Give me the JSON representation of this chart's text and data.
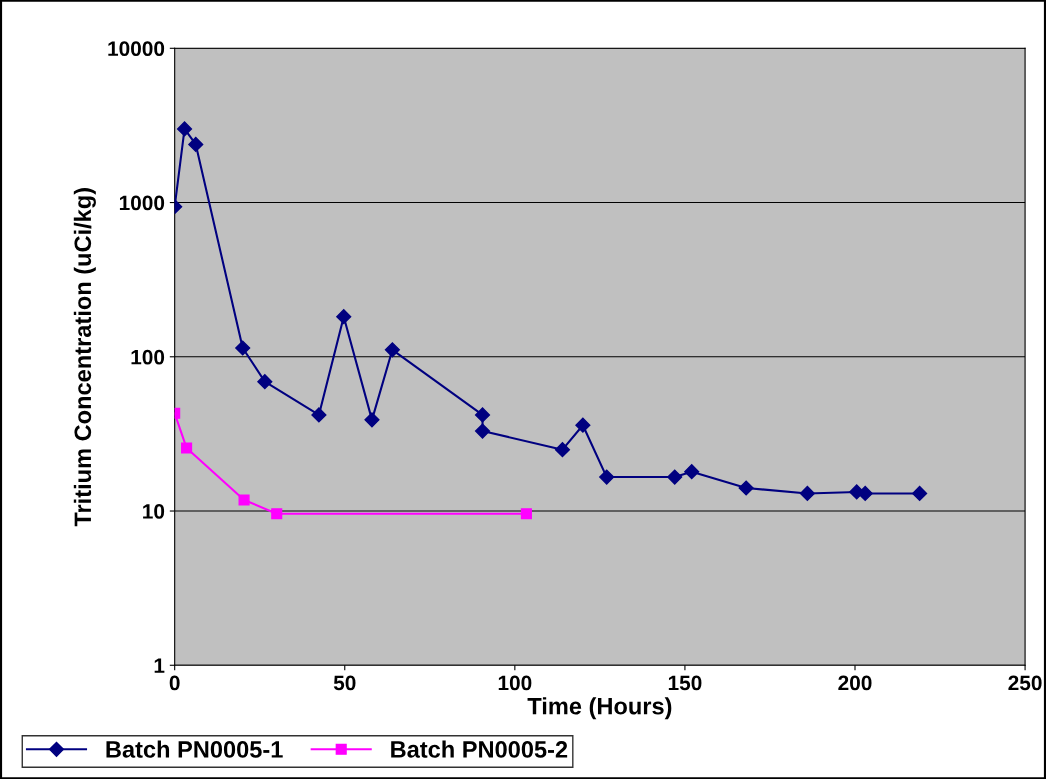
{
  "chart_data": {
    "type": "line",
    "xlabel": "Time (Hours)",
    "ylabel": "Tritium Concentration (uCi/kg)",
    "log": "y",
    "xlim": [
      0,
      250
    ],
    "xticks": [
      0,
      50,
      100,
      150,
      200,
      250
    ],
    "ylim": [
      1,
      10000
    ],
    "yticks": [
      1,
      10,
      100,
      1000,
      10000
    ],
    "grid": "y",
    "legend": "bottom left",
    "series": [
      {
        "name": "Batch PN0005-1",
        "color": "#000080",
        "marker": "diamond",
        "x": [
          0,
          2.9,
          6.2,
          20,
          26.5,
          42.4,
          49.7,
          58,
          64,
          90.5,
          90.5,
          114,
          120,
          127,
          147,
          152,
          168,
          186,
          200.5,
          203,
          219
        ],
        "values": [
          940,
          3000,
          2380,
          114,
          69,
          42,
          182,
          39,
          111,
          42,
          33,
          25,
          36,
          16.6,
          16.6,
          18,
          14.1,
          13,
          13.3,
          13,
          13
        ]
      },
      {
        "name": "Batch PN0005-2",
        "color": "#ff00ff",
        "marker": "square",
        "x": [
          0,
          3.5,
          20.4,
          30,
          103.4
        ],
        "values": [
          43,
          25.6,
          11.8,
          9.6,
          9.6
        ]
      }
    ]
  }
}
